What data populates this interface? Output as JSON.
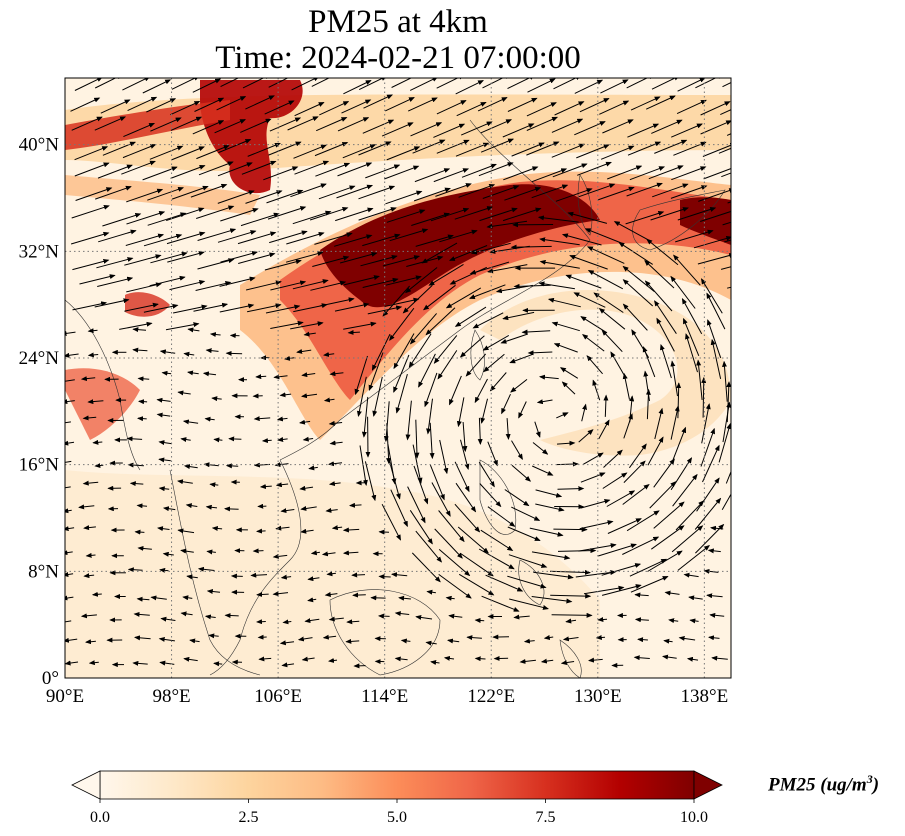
{
  "title": {
    "line1": "PM25 at 4km",
    "line2": "Time: 2024-02-21 07:00:00"
  },
  "map": {
    "lon_range": [
      90,
      140
    ],
    "lat_range": [
      0,
      45
    ],
    "lon_ticks": [
      "90°E",
      "98°E",
      "106°E",
      "114°E",
      "122°E",
      "130°E",
      "138°E"
    ],
    "lat_ticks": [
      "0°",
      "8°N",
      "16°N",
      "24°N",
      "32°N",
      "40°N"
    ],
    "gridlines": true,
    "field": "PM25",
    "vectors": "wind"
  },
  "colorbar": {
    "colormap": "OrRd",
    "colors": [
      "#fff7ec",
      "#fee8c8",
      "#fdd49e",
      "#fdbb84",
      "#fc8d59",
      "#ef6548",
      "#d7301f",
      "#b30000",
      "#7f0000"
    ],
    "range": [
      0.0,
      10.0
    ],
    "ticks": [
      "0.0",
      "2.5",
      "5.0",
      "7.5",
      "10.0"
    ],
    "extend": "both",
    "unit_label": "PM25 (ug/m",
    "unit_exp": "3",
    "unit_close": ")"
  }
}
